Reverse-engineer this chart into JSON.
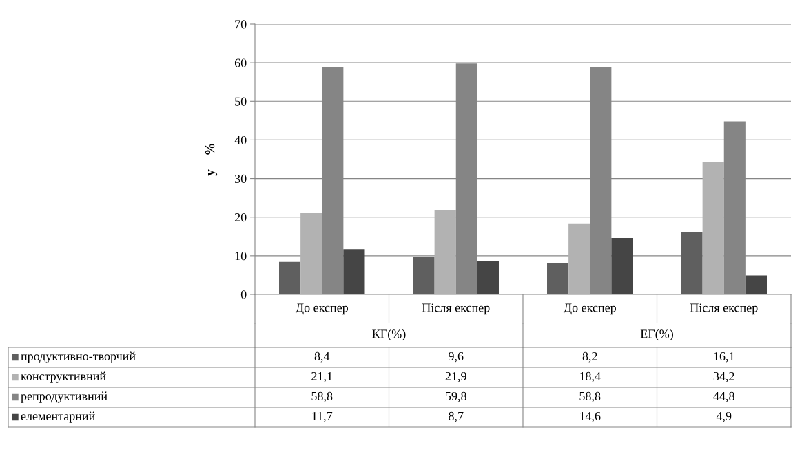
{
  "chart_data": {
    "type": "bar",
    "ylabel": "у    %",
    "categories": [
      "До експер",
      "Після експер",
      "До експер",
      "Після експер"
    ],
    "annotations": [
      "КГ(%)",
      "ЕГ(%)"
    ],
    "series": [
      {
        "name": "продуктивно-творчий",
        "color": "#5f5f5f",
        "values": [
          8.4,
          9.6,
          8.2,
          16.1
        ],
        "value_labels": [
          "8,4",
          "9,6",
          "8,2",
          "16,1"
        ]
      },
      {
        "name": "конструктивний",
        "color": "#b2b2b2",
        "values": [
          21.1,
          21.9,
          18.4,
          34.2
        ],
        "value_labels": [
          "21,1",
          "21,9",
          "18,4",
          "34,2"
        ]
      },
      {
        "name": "репродуктивний",
        "color": "#858585",
        "values": [
          58.8,
          59.8,
          58.8,
          44.8
        ],
        "value_labels": [
          "58,8",
          "59,8",
          "58,8",
          "44,8"
        ]
      },
      {
        "name": "елементарний",
        "color": "#454545",
        "values": [
          11.7,
          8.7,
          14.6,
          4.9
        ],
        "value_labels": [
          "11,7",
          "8,7",
          "14,6",
          "4,9"
        ]
      }
    ],
    "ylim": [
      0,
      70
    ],
    "yticks": [
      0,
      10,
      20,
      30,
      40,
      50,
      60,
      70
    ],
    "grid": "y",
    "legend": "bottom left"
  }
}
